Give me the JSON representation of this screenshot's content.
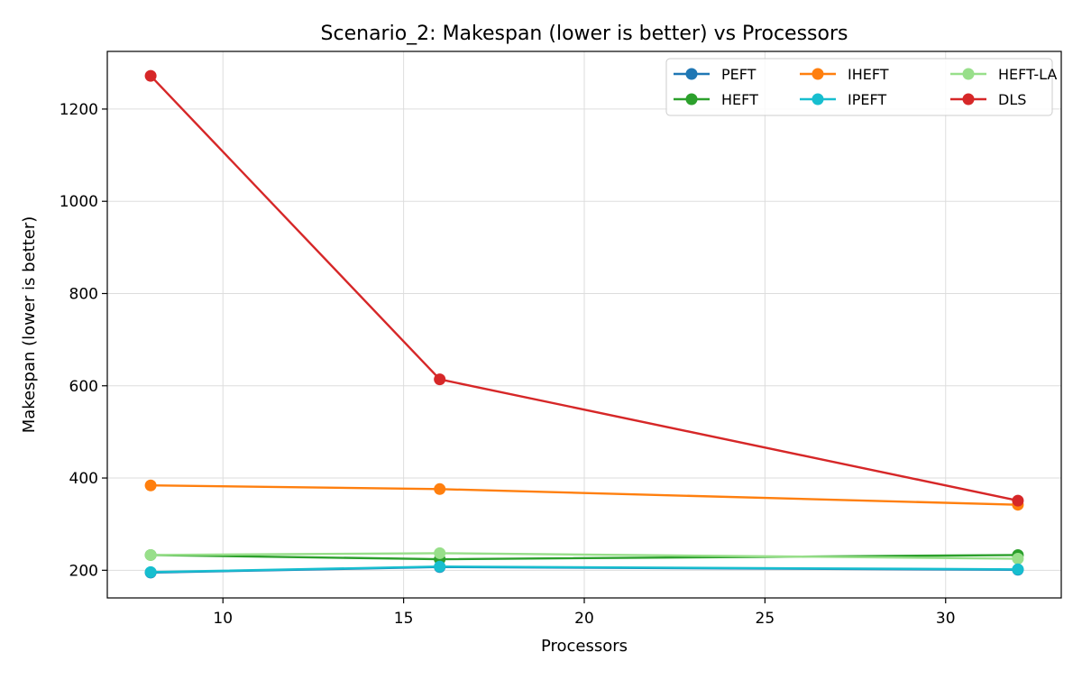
{
  "chart_data": {
    "type": "line",
    "title": "Scenario_2: Makespan (lower is better) vs Processors",
    "xlabel": "Processors",
    "ylabel": "Makespan (lower is better)",
    "x": [
      8,
      16,
      32
    ],
    "xlim": [
      6.8,
      33.2
    ],
    "ylim": [
      140,
      1325
    ],
    "xticks": [
      10,
      15,
      20,
      25,
      30
    ],
    "yticks": [
      200,
      400,
      600,
      800,
      1000,
      1200
    ],
    "grid": true,
    "legend_position": "top-right",
    "series": [
      {
        "name": "PEFT",
        "color": "#1f77b4",
        "values": [
          195,
          207,
          201
        ]
      },
      {
        "name": "HEFT",
        "color": "#2ca02c",
        "values": [
          233,
          224,
          233
        ]
      },
      {
        "name": "IHEFT",
        "color": "#ff7f0e",
        "values": [
          384,
          376,
          342
        ]
      },
      {
        "name": "IPEFT",
        "color": "#17becf",
        "values": [
          196,
          208,
          202
        ]
      },
      {
        "name": "HEFT-LA",
        "color": "#98df8a",
        "values": [
          233,
          237,
          225
        ]
      },
      {
        "name": "DLS",
        "color": "#d62728",
        "values": [
          1272,
          614,
          351
        ]
      }
    ]
  }
}
